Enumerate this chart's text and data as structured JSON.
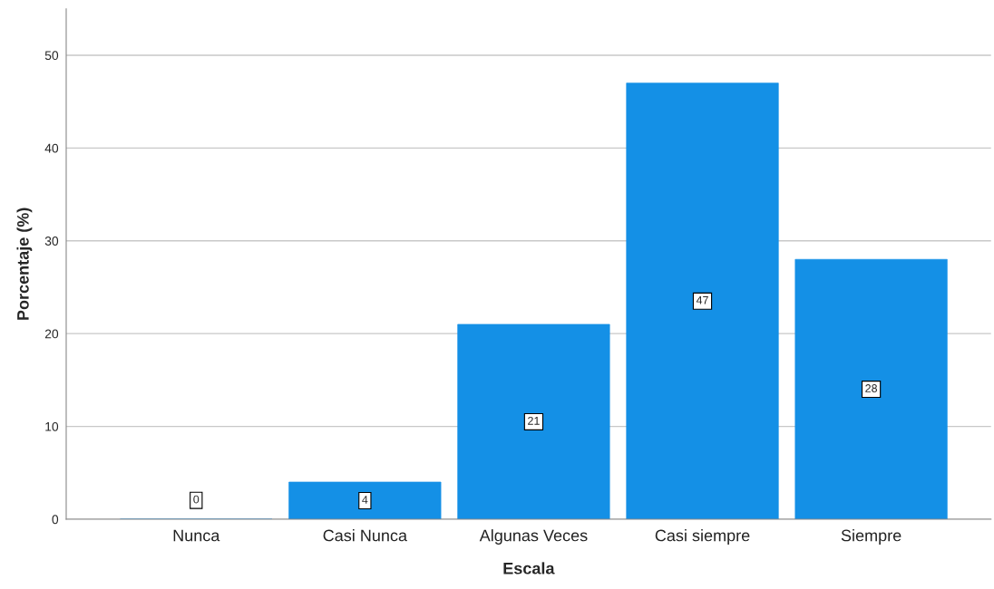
{
  "chart_data": {
    "type": "bar",
    "xlabel": "Escala",
    "ylabel": "Porcentaje (%)",
    "categories": [
      "Nunca",
      "Casi Nunca",
      "Algunas Veces",
      "Casi siempre",
      "Siempre"
    ],
    "values": [
      0,
      4,
      21,
      47,
      28
    ],
    "color": "#1490e6",
    "ylim": [
      0,
      55
    ],
    "yticks": [
      0,
      10,
      20,
      30,
      40,
      50
    ],
    "grid": "y",
    "data_labels": true
  }
}
